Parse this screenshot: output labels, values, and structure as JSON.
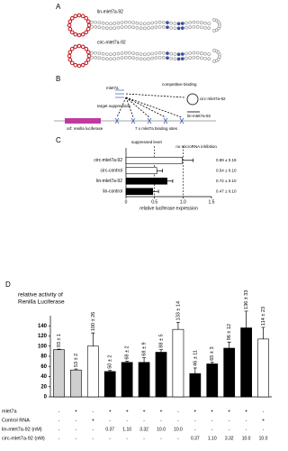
{
  "panel_a": {
    "label": "A",
    "structures": [
      "lin-mlet7a-92",
      "circ-mlet7a-92"
    ]
  },
  "panel_b": {
    "label": "B",
    "mirna": "mlet7a",
    "competition": "competitive binding",
    "circ": "circ-mlet7a-92",
    "lin": "lin-mlet7a-92",
    "suppression": "target suppression",
    "reporter": "orf: renilla luciferase",
    "sites": "7 x mlet7a binding sites"
  },
  "chart_data": [
    {
      "type": "hbar",
      "panel_label": "C",
      "categories": [
        "circ-mlet7a-92",
        "circ-control",
        "lin-mlet7a-92",
        "lin-control"
      ],
      "values": [
        0.99,
        0.54,
        0.72,
        0.47
      ],
      "errors": [
        0.19,
        0.1,
        0.1,
        0.1
      ],
      "value_labels": [
        "0.99 ± 0.19",
        "0.54 ± 0.10",
        "0.72 ± 0.10",
        "0.47 ± 0.10"
      ],
      "colors": [
        "#ffffff",
        "#ffffff",
        "#000000",
        "#000000"
      ],
      "xlim": [
        0,
        1.5
      ],
      "xticks": [
        0,
        0.5,
        {
          "value": 1,
          "label": "1.0"
        },
        1.5
      ],
      "xlabel": "relative luciferase expression",
      "reference_lines": [
        {
          "value": 0.5,
          "label": "suppressed level"
        },
        {
          "value": 1,
          "label": "no microRNA inhibition"
        }
      ]
    },
    {
      "type": "bar",
      "panel_label": "D",
      "ylabel": [
        "relative activity of",
        "Renilla Luciferase"
      ],
      "values": [
        93,
        53,
        100,
        50,
        68,
        68,
        88,
        133,
        46,
        65,
        96,
        136,
        114
      ],
      "errors": [
        1,
        2,
        26,
        2,
        2,
        9,
        5,
        14,
        11,
        3,
        12,
        33,
        23
      ],
      "value_labels": [
        "93 ± 1",
        "53 ± 2",
        "100 ± 26",
        "50 ± 2",
        "68 ± 2",
        "68 ± 9",
        "88 ± 5",
        "133 ± 14",
        "46 ± 11",
        "65 ± 3",
        "96 ± 12",
        "136 ± 33",
        "114 ± 23"
      ],
      "colors": [
        "#cfcfcf",
        "#cfcfcf",
        "#ffffff",
        "#000000",
        "#000000",
        "#000000",
        "#000000",
        "#ffffff",
        "#000000",
        "#000000",
        "#000000",
        "#000000",
        "#ffffff"
      ],
      "ylim": [
        0,
        160
      ],
      "yticks": [
        0,
        20,
        40,
        60,
        80,
        100,
        120,
        140
      ],
      "table": [
        {
          "label": "mlet7a",
          "cells": [
            "-",
            "+",
            "-",
            "+",
            "+",
            "+",
            "+",
            "-",
            "+",
            "+",
            "+",
            "+",
            "-"
          ]
        },
        {
          "label": "Control RNA",
          "cells": [
            "-",
            "-",
            "+",
            "-",
            "-",
            "-",
            "-",
            "-",
            "-",
            "-",
            "-",
            "-",
            "+"
          ]
        },
        {
          "label": "lin-mlet7a-92 (nM)",
          "cells": [
            "-",
            "-",
            "-",
            "0.37",
            "1.10",
            "3.32",
            "10.0",
            "10.0",
            "-",
            "-",
            "-",
            "-",
            "-"
          ]
        },
        {
          "label": "circ-mlet7a-92 (nM)",
          "cells": [
            "-",
            "-",
            "-",
            "-",
            "-",
            "-",
            "-",
            "-",
            "0.37",
            "1.10",
            "3.32",
            "10.0",
            "10.0"
          ]
        }
      ]
    }
  ]
}
